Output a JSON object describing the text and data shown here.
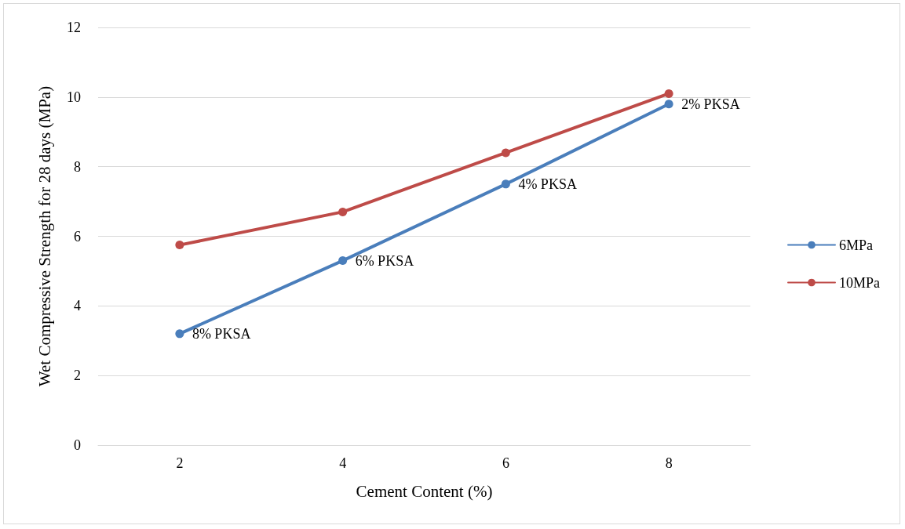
{
  "chart_data": {
    "type": "line",
    "xlabel": "Cement Content (%)",
    "ylabel": "Wet Compressive Strength for 28 days (MPa)",
    "categories": [
      "2",
      "4",
      "6",
      "8"
    ],
    "series": [
      {
        "name": "6MPa",
        "color": "#4a7ebb",
        "values": [
          3.2,
          5.3,
          7.5,
          9.8
        ]
      },
      {
        "name": "10MPa",
        "color": "#be4b48",
        "values": [
          5.75,
          6.7,
          8.4,
          10.1
        ]
      }
    ],
    "ylim": [
      0,
      12
    ],
    "yticks": [
      0,
      2,
      4,
      6,
      8,
      10,
      12
    ],
    "grid": "y",
    "legend": "right",
    "marker": "circle",
    "line_style": "solid",
    "annotations": [
      {
        "text": "8% PKSA",
        "x": "2",
        "y": 3.2
      },
      {
        "text": "6% PKSA",
        "x": "4",
        "y": 5.3
      },
      {
        "text": "4% PKSA",
        "x": "6",
        "y": 7.5
      },
      {
        "text": "2% PKSA",
        "x": "8",
        "y": 9.8
      }
    ]
  }
}
